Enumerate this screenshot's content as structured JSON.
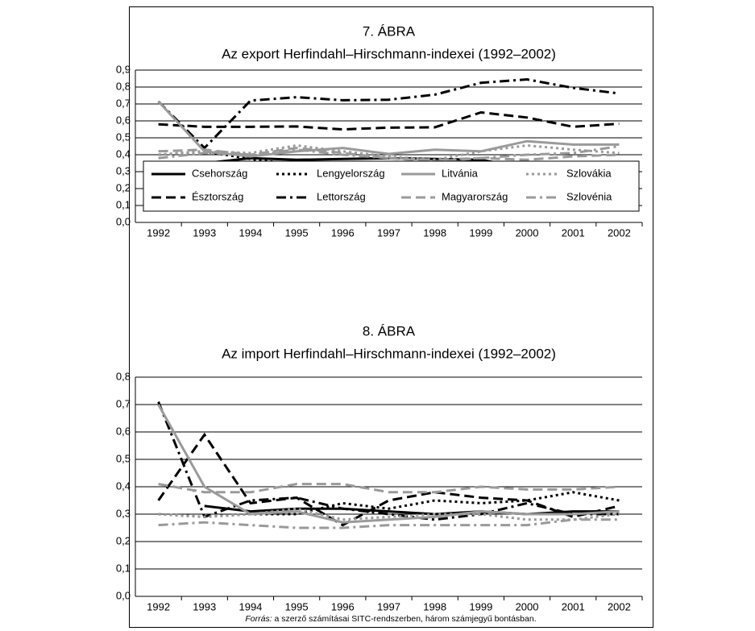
{
  "chart_data": [
    {
      "type": "line",
      "title": "7. ÁBRA",
      "subtitle": "Az export Herfindahl–Hirschmann-indexei (1992–2002)",
      "categories": [
        "1992",
        "1993",
        "1994",
        "1995",
        "1996",
        "1997",
        "1998",
        "1999",
        "2000",
        "2001",
        "2002"
      ],
      "ylim": [
        0,
        0.9
      ],
      "yticks": [
        {
          "value": 0,
          "label": "0,0"
        },
        {
          "value": 0.1,
          "label": "0,1"
        },
        {
          "value": 0.2,
          "label": "0,2"
        },
        {
          "value": 0.3,
          "label": "0,3"
        },
        {
          "value": 0.4,
          "label": "0,4"
        },
        {
          "value": 0.5,
          "label": "0,5"
        },
        {
          "value": 0.6,
          "label": "0,6"
        },
        {
          "value": 0.7,
          "label": "0,7"
        },
        {
          "value": 0.8,
          "label": "0,8"
        },
        {
          "value": 0.9,
          "label": "0,9"
        }
      ],
      "grid": true,
      "legend": "bottom",
      "series": [
        {
          "name": "Csehország",
          "color": "#000000",
          "dash": "solid",
          "values": [
            null,
            0.35,
            0.38,
            0.37,
            0.375,
            0.38,
            0.375,
            0.37,
            0.32,
            0.325,
            0.345
          ]
        },
        {
          "name": "Észtország",
          "color": "#000000",
          "dash": "dashed",
          "values": [
            0.58,
            0.565,
            0.565,
            0.567,
            0.55,
            0.56,
            0.562,
            0.65,
            0.62,
            0.565,
            0.583
          ]
        },
        {
          "name": "Lengyelország",
          "color": "#000000",
          "dash": "dotted",
          "values": [
            0.4,
            0.42,
            0.375,
            0.34,
            0.33,
            0.32,
            0.34,
            0.335,
            0.34,
            0.345,
            0.35
          ]
        },
        {
          "name": "Lettország",
          "color": "#000000",
          "dash": "dashdot",
          "values": [
            0.715,
            0.44,
            0.72,
            0.74,
            0.722,
            0.725,
            0.755,
            0.825,
            0.845,
            0.795,
            0.762
          ]
        },
        {
          "name": "Litvánia",
          "color": "#9a9a9a",
          "dash": "solid",
          "values": [
            0.715,
            0.42,
            0.39,
            0.42,
            0.44,
            0.405,
            0.43,
            0.42,
            0.48,
            0.46,
            0.46
          ]
        },
        {
          "name": "Magyarország",
          "color": "#9a9a9a",
          "dash": "dashed",
          "values": [
            0.42,
            0.43,
            0.4,
            0.44,
            0.41,
            0.38,
            0.36,
            0.38,
            0.37,
            0.39,
            0.4
          ]
        },
        {
          "name": "Szlovákia",
          "color": "#9a9a9a",
          "dash": "dotted",
          "values": [
            0.4,
            0.42,
            0.41,
            0.455,
            0.42,
            0.39,
            0.37,
            0.42,
            0.455,
            0.43,
            0.41
          ]
        },
        {
          "name": "Szlovénia",
          "color": "#9a9a9a",
          "dash": "dashdot",
          "values": [
            0.38,
            0.41,
            0.4,
            0.43,
            0.4,
            0.38,
            0.37,
            0.38,
            0.4,
            0.41,
            0.45
          ]
        }
      ]
    },
    {
      "type": "line",
      "title": "8. ÁBRA",
      "subtitle": "Az import Herfindahl–Hirschmann-indexei (1992–2002)",
      "categories": [
        "1992",
        "1993",
        "1994",
        "1995",
        "1996",
        "1997",
        "1998",
        "1999",
        "2000",
        "2001",
        "2002"
      ],
      "ylim": [
        0,
        0.8
      ],
      "yticks": [
        {
          "value": 0,
          "label": "0,0"
        },
        {
          "value": 0.1,
          "label": "0,1"
        },
        {
          "value": 0.2,
          "label": "0,2"
        },
        {
          "value": 0.3,
          "label": "0,3"
        },
        {
          "value": 0.4,
          "label": "0,4"
        },
        {
          "value": 0.5,
          "label": "0,5"
        },
        {
          "value": 0.6,
          "label": "0,6"
        },
        {
          "value": 0.7,
          "label": "0,7"
        },
        {
          "value": 0.8,
          "label": "0,8"
        }
      ],
      "grid": true,
      "series": [
        {
          "color": "#000000",
          "dash": "solid",
          "values": [
            null,
            0.33,
            0.31,
            0.32,
            0.32,
            0.31,
            0.3,
            0.31,
            0.3,
            0.31,
            0.31
          ]
        },
        {
          "color": "#000000",
          "dash": "dashed",
          "values": [
            0.35,
            0.59,
            0.34,
            0.36,
            0.26,
            0.35,
            0.38,
            0.36,
            0.35,
            0.29,
            0.33
          ]
        },
        {
          "color": "#000000",
          "dash": "dotted",
          "values": [
            0.3,
            0.29,
            0.3,
            0.3,
            0.34,
            0.32,
            0.35,
            0.34,
            0.35,
            0.38,
            0.35
          ]
        },
        {
          "color": "#000000",
          "dash": "dashdot",
          "values": [
            0.71,
            0.29,
            0.35,
            0.36,
            0.32,
            0.3,
            0.28,
            0.3,
            0.34,
            0.3,
            0.3
          ]
        },
        {
          "color": "#9a9a9a",
          "dash": "solid",
          "values": [
            0.7,
            0.4,
            0.3,
            0.31,
            0.27,
            0.28,
            0.29,
            0.31,
            0.3,
            0.3,
            0.31
          ]
        },
        {
          "color": "#9a9a9a",
          "dash": "dashed",
          "values": [
            0.41,
            0.38,
            0.38,
            0.41,
            0.41,
            0.38,
            0.38,
            0.4,
            0.39,
            0.39,
            0.4
          ]
        },
        {
          "color": "#9a9a9a",
          "dash": "dotted",
          "values": [
            0.3,
            0.29,
            0.3,
            0.32,
            0.28,
            0.29,
            0.3,
            0.3,
            0.28,
            0.28,
            0.3
          ]
        },
        {
          "color": "#9a9a9a",
          "dash": "dashdot",
          "values": [
            0.26,
            0.27,
            0.26,
            0.25,
            0.25,
            0.26,
            0.26,
            0.26,
            0.26,
            0.28,
            0.28
          ]
        }
      ]
    }
  ],
  "source": {
    "label": "Forrás:",
    "text": "a szerző számításai SITC-rendszerben, három számjegyű bontásban."
  }
}
